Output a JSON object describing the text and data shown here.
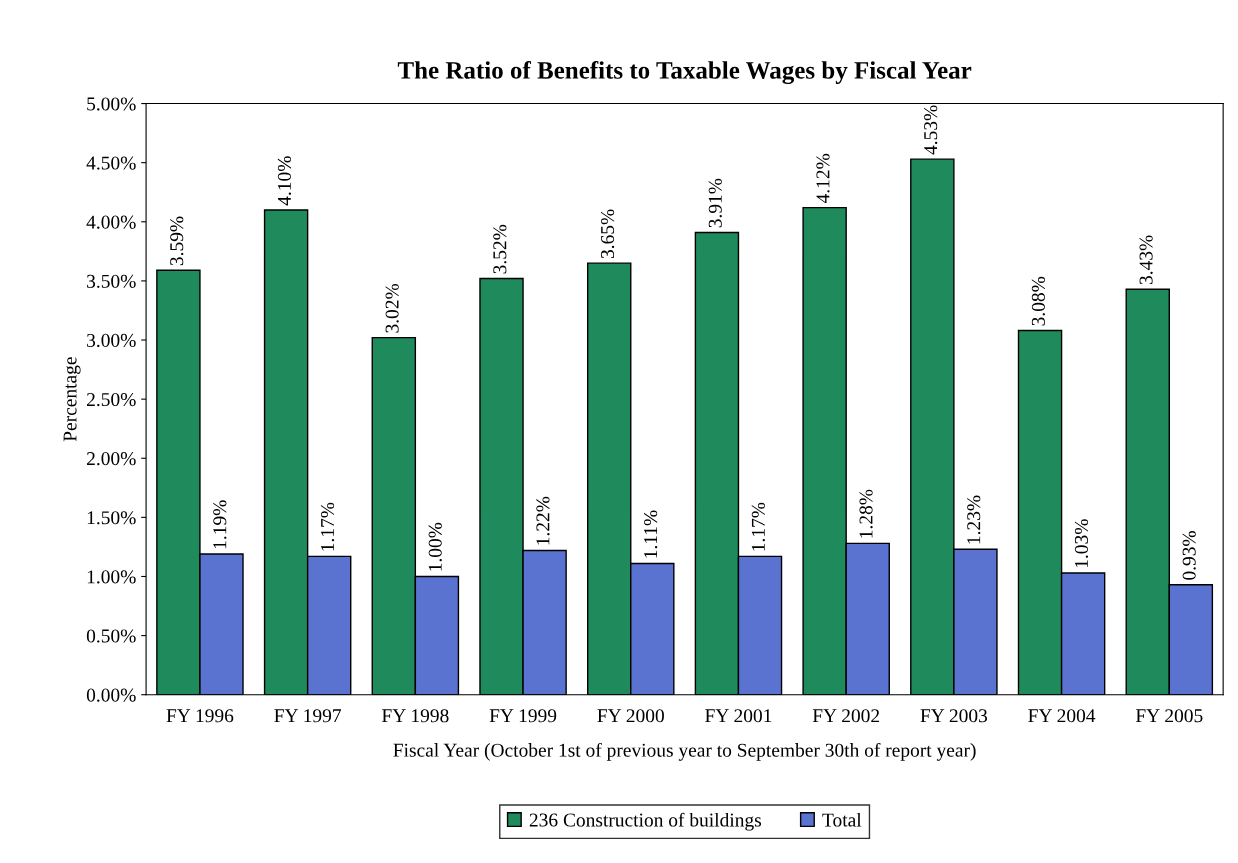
{
  "chart_data": {
    "type": "bar",
    "title": "The Ratio of Benefits to Taxable Wages by Fiscal Year",
    "xlabel": "Fiscal Year (October 1st of previous year to September 30th of report year)",
    "ylabel": "Percentage",
    "categories": [
      "FY 1996",
      "FY 1997",
      "FY 1998",
      "FY 1999",
      "FY 2000",
      "FY 2001",
      "FY 2002",
      "FY 2003",
      "FY 2004",
      "FY 2005"
    ],
    "series": [
      {
        "name": "236 Construction of buildings",
        "color": "#1f8a5c",
        "values": [
          3.59,
          4.1,
          3.02,
          3.52,
          3.65,
          3.91,
          4.12,
          4.53,
          3.08,
          3.43
        ],
        "value_labels": [
          "3.59%",
          "4.10%",
          "3.02%",
          "3.52%",
          "3.65%",
          "3.91%",
          "4.12%",
          "4.53%",
          "3.08%",
          "3.43%"
        ]
      },
      {
        "name": "Total",
        "color": "#5a72d0",
        "values": [
          1.19,
          1.17,
          1.0,
          1.22,
          1.11,
          1.17,
          1.28,
          1.23,
          1.03,
          0.93
        ],
        "value_labels": [
          "1.19%",
          "1.17%",
          "1.00%",
          "1.22%",
          "1.11%",
          "1.17%",
          "1.28%",
          "1.23%",
          "1.03%",
          "0.93%"
        ]
      }
    ],
    "ylim": [
      0,
      5
    ],
    "yticks": [
      {
        "value": 0,
        "label": "0.00%"
      },
      {
        "value": 0.5,
        "label": "0.50%"
      },
      {
        "value": 1,
        "label": "1.00%"
      },
      {
        "value": 1.5,
        "label": "1.50%"
      },
      {
        "value": 2,
        "label": "2.00%"
      },
      {
        "value": 2.5,
        "label": "2.50%"
      },
      {
        "value": 3,
        "label": "3.00%"
      },
      {
        "value": 3.5,
        "label": "3.50%"
      },
      {
        "value": 4,
        "label": "4.00%"
      },
      {
        "value": 4.5,
        "label": "4.50%"
      },
      {
        "value": 5,
        "label": "5.00%"
      }
    ],
    "grid": false,
    "legend": "bottom"
  }
}
